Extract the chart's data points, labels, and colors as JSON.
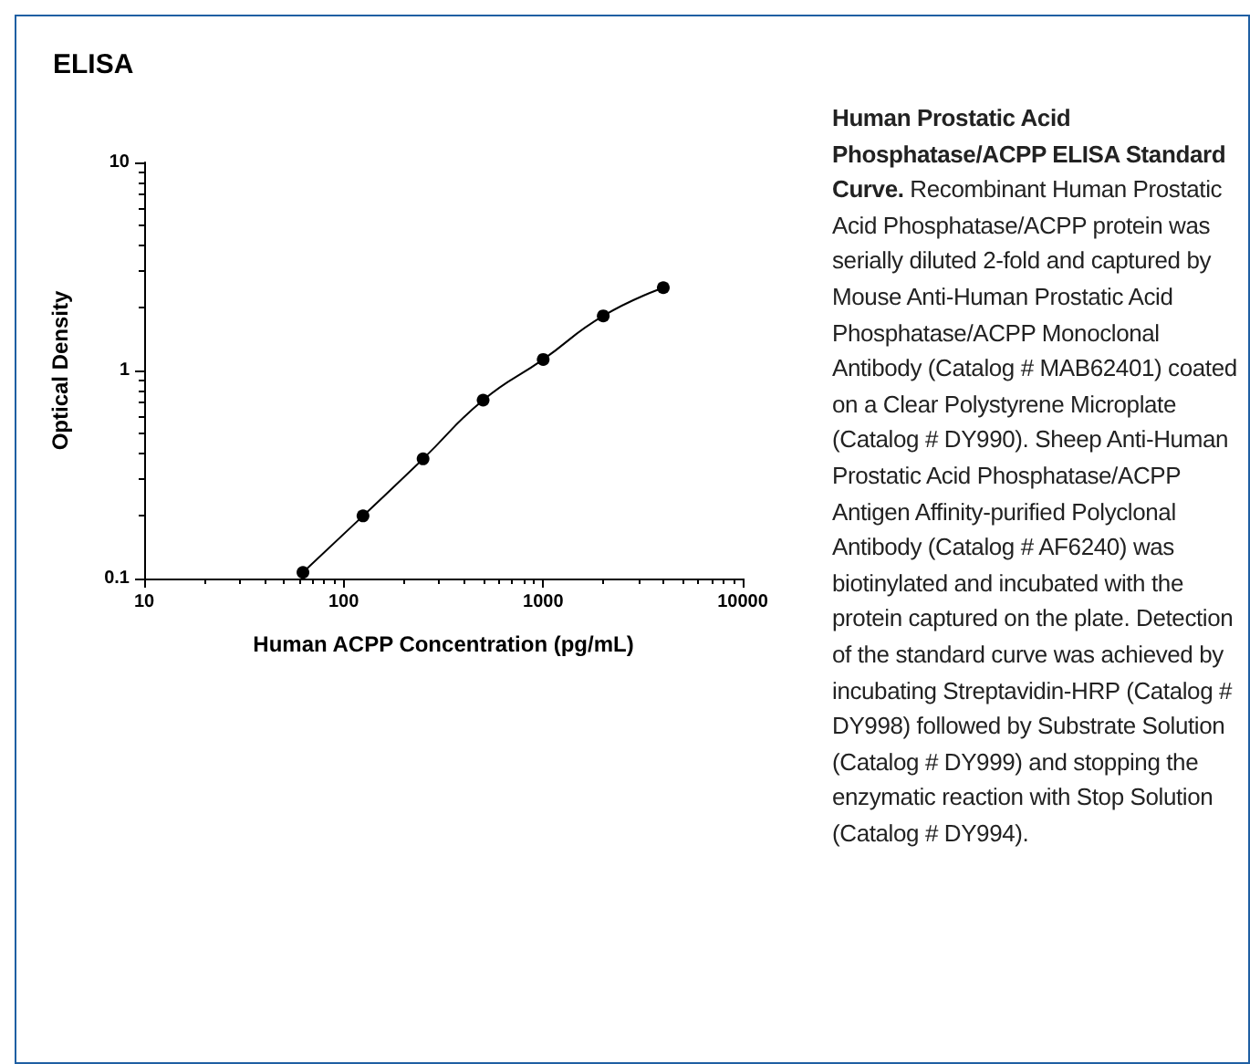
{
  "chart_data": {
    "type": "line",
    "title": "ELISA",
    "xlabel": "Human ACPP Concentration (pg/mL)",
    "ylabel": "Optical Density",
    "x": [
      62.5,
      125,
      250,
      500,
      1000,
      2000,
      4000
    ],
    "series": [
      {
        "color": "#000000",
        "values": [
          0.107,
          0.2,
          0.376,
          0.72,
          1.13,
          1.83,
          2.5
        ]
      }
    ],
    "log": "xy",
    "xlim": [
      10,
      10000
    ],
    "xticks": [
      10,
      100,
      1000,
      10000
    ],
    "ylim": [
      0.1,
      10
    ],
    "yticks": [
      0.1,
      1,
      10
    ],
    "grid": false,
    "marker": "circle",
    "line_style": "solid",
    "annotations": [
      "Human Prostatic Acid Phosphatase/ACPP ELISA Standard Curve.",
      "Recombinant Human Prostatic Acid Phosphatase/ACPP protein was serially diluted 2-fold and captured by Mouse Anti-Human Prostatic Acid Phosphatase/ACPP Monoclonal Antibody (Catalog # MAB62401) coated on a Clear Polystyrene Microplate (Catalog # DY990). Sheep Anti-Human Prostatic Acid Phosphatase/ACPP Antigen Affinity-purified Polyclonal Antibody (Catalog # AF6240) was biotinylated and incubated with the protein captured on the plate. Detection of the standard curve was achieved by incubating Streptavidin-HRP (Catalog # DY998) followed by Substrate Solution (Catalog # DY999) and stopping the enzymatic reaction with Stop Solution (Catalog # DY994)."
    ]
  }
}
